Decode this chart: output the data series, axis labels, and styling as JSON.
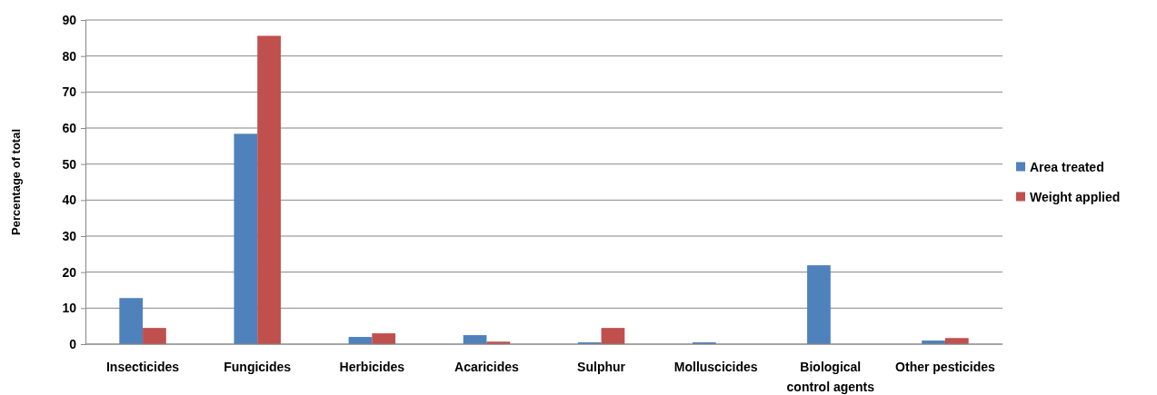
{
  "chart_data": {
    "type": "bar",
    "ylabel": "Percentage of total",
    "categories": [
      "Insecticides",
      "Fungicides",
      "Herbicides",
      "Acaricides",
      "Sulphur",
      "Molluscicides",
      "Biological control agents",
      "Other pesticides"
    ],
    "series": [
      {
        "name": "Area treated",
        "color": "#4f81bd",
        "values": [
          12.8,
          58.4,
          2.0,
          2.5,
          0.5,
          0.5,
          21.9,
          1.0
        ]
      },
      {
        "name": "Weight applied",
        "color": "#c0504d",
        "values": [
          4.5,
          85.6,
          3.0,
          0.7,
          4.5,
          null,
          0,
          1.7
        ]
      }
    ],
    "ylim": [
      0,
      90
    ],
    "yticks": [
      0,
      10,
      20,
      30,
      40,
      50,
      60,
      70,
      80,
      90
    ],
    "grid": "y",
    "legend": "right"
  }
}
